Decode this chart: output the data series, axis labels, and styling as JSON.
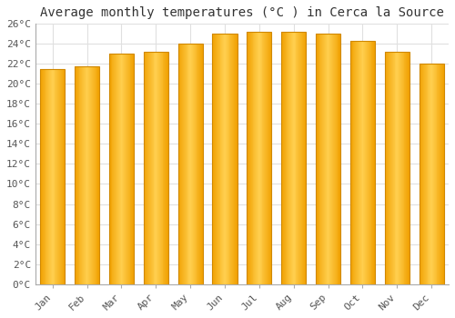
{
  "title": "Average monthly temperatures (°C ) in Cerca la Source",
  "months": [
    "Jan",
    "Feb",
    "Mar",
    "Apr",
    "May",
    "Jun",
    "Jul",
    "Aug",
    "Sep",
    "Oct",
    "Nov",
    "Dec"
  ],
  "temperatures": [
    21.5,
    21.8,
    23.0,
    23.2,
    24.0,
    25.0,
    25.2,
    25.2,
    25.0,
    24.3,
    23.2,
    22.0
  ],
  "bar_color_left": "#F0A000",
  "bar_color_center": "#FFD060",
  "bar_color_right": "#F0A000",
  "bar_edge_color": "#D08800",
  "ylim": [
    0,
    26
  ],
  "ytick_step": 2,
  "background_color": "#FFFFFF",
  "grid_color": "#E0E0E0",
  "title_fontsize": 10,
  "tick_fontsize": 8,
  "font_family": "monospace"
}
